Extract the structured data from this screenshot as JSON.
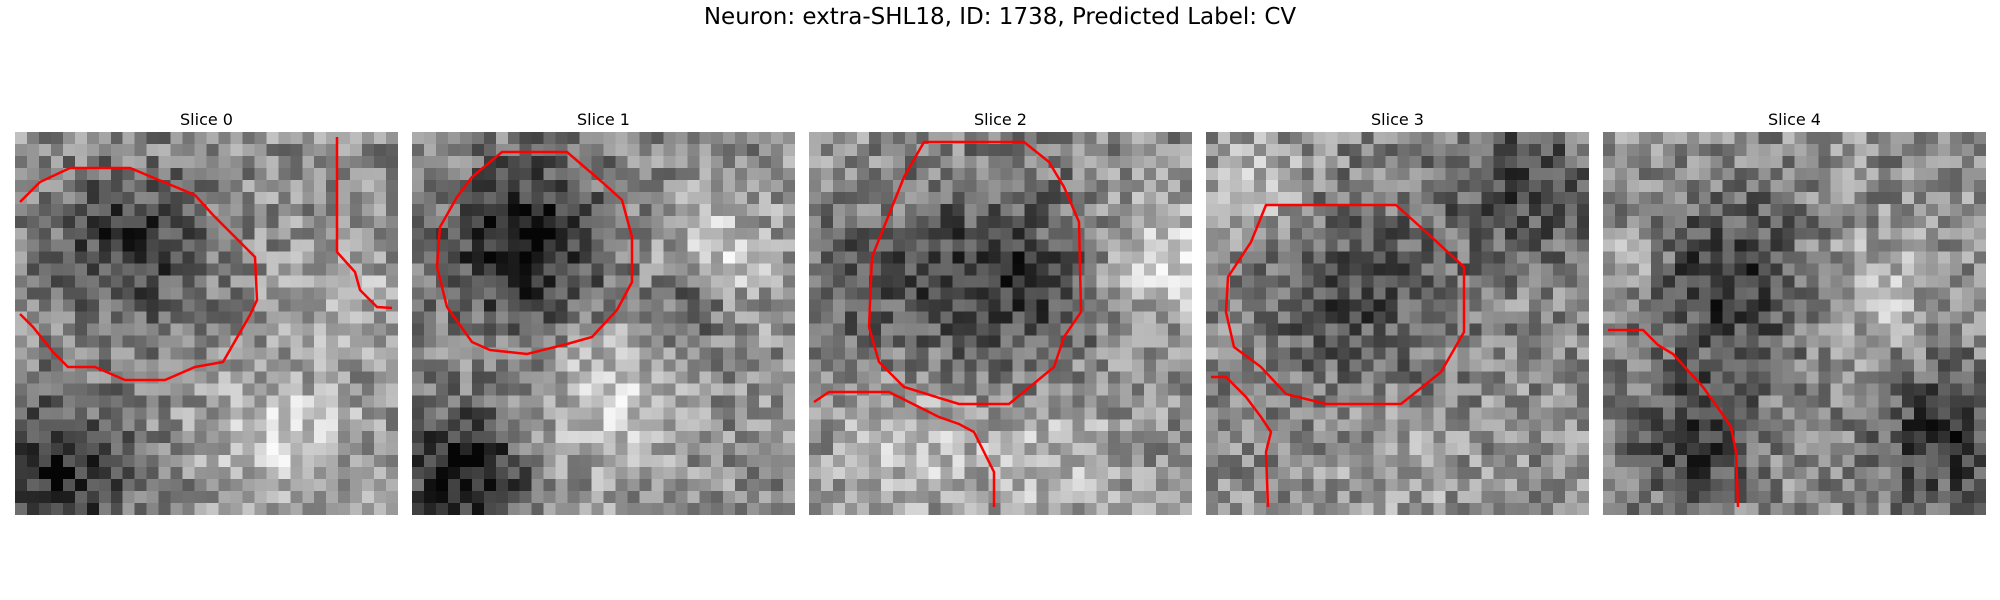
{
  "figure": {
    "title": "Neuron: extra-SHL18, ID: 1738, Predicted Label: CV"
  },
  "colors": {
    "contour": "#ff0000",
    "background": "#ffffff"
  },
  "panels": [
    {
      "title": "Slice 0",
      "seed": 11,
      "cmap": "grayscale"
    },
    {
      "title": "Slice 1",
      "seed": 23,
      "cmap": "grayscale"
    },
    {
      "title": "Slice 2",
      "seed": 37,
      "cmap": "grayscale"
    },
    {
      "title": "Slice 3",
      "seed": 41,
      "cmap": "grayscale"
    },
    {
      "title": "Slice 4",
      "seed": 59,
      "cmap": "grayscale"
    }
  ]
}
